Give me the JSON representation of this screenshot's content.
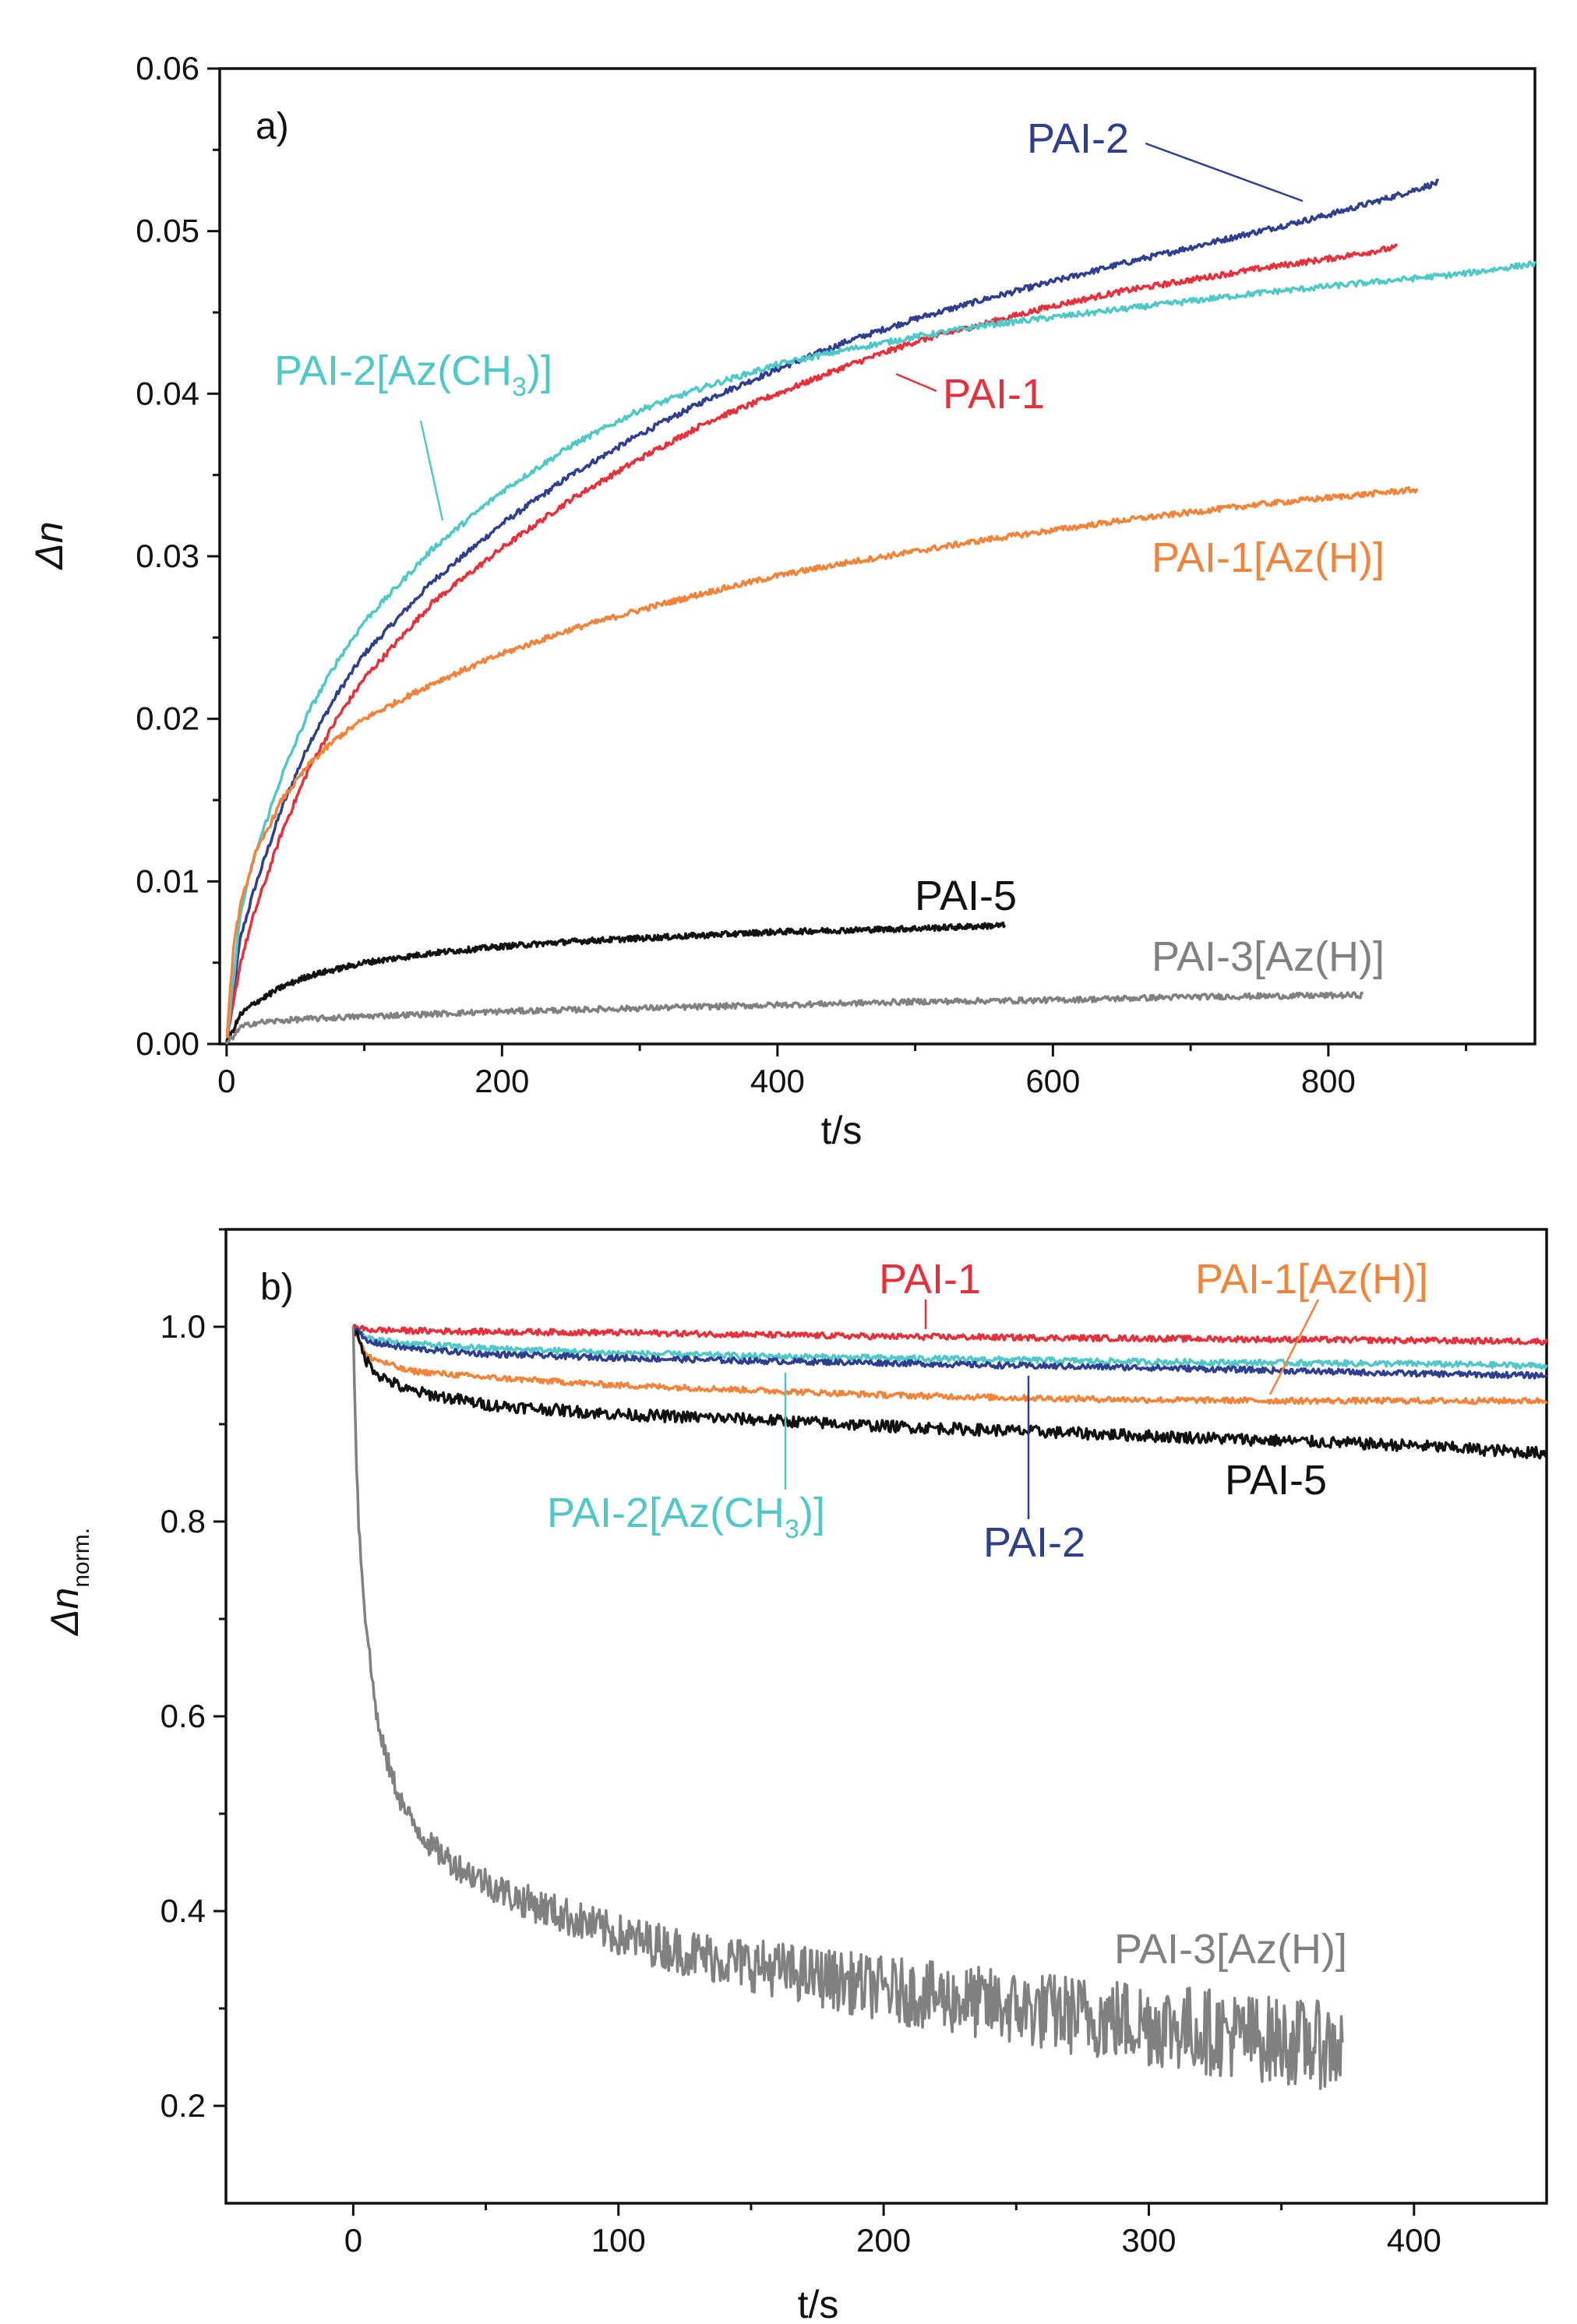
{
  "chart_data": [
    {
      "type": "line",
      "panel_label": "a)",
      "xlabel": "t/s",
      "ylabel": "Δn",
      "xlim": [
        -5,
        950
      ],
      "ylim": [
        0,
        0.06
      ],
      "x_ticks": [
        "0",
        "200",
        "400",
        "600",
        "800"
      ],
      "x_tick_values": [
        0,
        200,
        400,
        600,
        800
      ],
      "y_ticks": [
        "0.00",
        "0.01",
        "0.02",
        "0.03",
        "0.04",
        "0.05",
        "0.06"
      ],
      "y_tick_values": [
        0,
        0.01,
        0.02,
        0.03,
        0.04,
        0.05,
        0.06
      ],
      "series": [
        {
          "name": "PAI-2",
          "label": "PAI-2",
          "color": "#2e3f92",
          "x": [
            0,
            10,
            20,
            40,
            60,
            80,
            100,
            150,
            200,
            250,
            300,
            350,
            400,
            450,
            500,
            550,
            600,
            650,
            700,
            750,
            800,
            850,
            880
          ],
          "y": [
            0,
            0.0065,
            0.0095,
            0.0145,
            0.0185,
            0.0215,
            0.024,
            0.0285,
            0.032,
            0.035,
            0.0375,
            0.0397,
            0.0415,
            0.0432,
            0.0446,
            0.0458,
            0.0469,
            0.048,
            0.049,
            0.05,
            0.051,
            0.0522,
            0.053
          ]
        },
        {
          "name": "PAI-1",
          "label": "PAI-1",
          "color": "#e8303a",
          "x": [
            0,
            10,
            20,
            40,
            60,
            80,
            100,
            150,
            200,
            250,
            300,
            350,
            400,
            450,
            500,
            550,
            600,
            650,
            700,
            750,
            800,
            850
          ],
          "y": [
            0,
            0.005,
            0.008,
            0.013,
            0.017,
            0.02,
            0.0225,
            0.0272,
            0.0305,
            0.0335,
            0.036,
            0.0383,
            0.04,
            0.0417,
            0.0432,
            0.0443,
            0.0454,
            0.0463,
            0.047,
            0.0477,
            0.0483,
            0.049
          ]
        },
        {
          "name": "PAI-2[Az(CH3)]",
          "label": "PAI-2[Az(CH",
          "label_sub": "3",
          "label_end": ")]",
          "color": "#4ec8c8",
          "x": [
            0,
            10,
            20,
            40,
            60,
            80,
            100,
            150,
            200,
            250,
            300,
            350,
            400,
            450,
            500,
            550,
            600,
            650,
            700,
            750,
            800,
            850,
            900,
            950
          ],
          "y": [
            0,
            0.008,
            0.0115,
            0.0165,
            0.0205,
            0.0235,
            0.026,
            0.0305,
            0.034,
            0.0368,
            0.039,
            0.0405,
            0.0418,
            0.0427,
            0.0435,
            0.0442,
            0.0447,
            0.0452,
            0.0457,
            0.0462,
            0.0466,
            0.047,
            0.0474,
            0.048
          ]
        },
        {
          "name": "PAI-1[Az(H)]",
          "label": "PAI-1[Az(H)]",
          "color": "#f4833a",
          "x": [
            0,
            5,
            10,
            20,
            40,
            60,
            80,
            100,
            150,
            200,
            250,
            300,
            350,
            400,
            450,
            500,
            550,
            600,
            650,
            700,
            750,
            800,
            850,
            865
          ],
          "y": [
            0,
            0.006,
            0.0085,
            0.0115,
            0.015,
            0.0172,
            0.0188,
            0.02,
            0.0222,
            0.024,
            0.0255,
            0.0267,
            0.0278,
            0.0288,
            0.0296,
            0.0303,
            0.031,
            0.0316,
            0.0322,
            0.0327,
            0.0332,
            0.0336,
            0.034,
            0.0341
          ]
        },
        {
          "name": "PAI-5",
          "label": "PAI-5",
          "color": "#111111",
          "x": [
            0,
            10,
            20,
            40,
            60,
            80,
            100,
            150,
            200,
            250,
            300,
            350,
            400,
            450,
            500,
            565
          ],
          "y": [
            0,
            0.0018,
            0.0025,
            0.0035,
            0.0042,
            0.0046,
            0.005,
            0.0056,
            0.006,
            0.0063,
            0.0065,
            0.0067,
            0.0069,
            0.007,
            0.0071,
            0.0073
          ]
        },
        {
          "name": "PAI-3[Az(H)]",
          "label": "PAI-3[Az(H)]",
          "color": "#808080",
          "x": [
            0,
            10,
            20,
            50,
            100,
            200,
            300,
            400,
            500,
            600,
            700,
            825
          ],
          "y": [
            0,
            0.001,
            0.0013,
            0.0015,
            0.0017,
            0.002,
            0.0022,
            0.0024,
            0.0026,
            0.0027,
            0.0029,
            0.003
          ]
        }
      ]
    },
    {
      "type": "line",
      "panel_label": "b)",
      "xlabel": "t/s",
      "ylabel": "Δn",
      "ylabel_sub": "norm.",
      "xlim": [
        -48,
        450
      ],
      "ylim": [
        0.1,
        1.1
      ],
      "x_ticks": [
        "0",
        "100",
        "200",
        "300",
        "400"
      ],
      "x_tick_values": [
        0,
        100,
        200,
        300,
        400
      ],
      "y_ticks": [
        "0.2",
        "0.4",
        "0.6",
        "0.8",
        "1.0"
      ],
      "y_tick_values": [
        0.2,
        0.4,
        0.6,
        0.8,
        1.0
      ],
      "series": [
        {
          "name": "PAI-1",
          "label": "PAI-1",
          "color": "#e8303a",
          "x": [
            0,
            5,
            20,
            50,
            100,
            150,
            200,
            250,
            300,
            350,
            400,
            450
          ],
          "y": [
            1.0,
            0.997,
            0.996,
            0.995,
            0.994,
            0.992,
            0.99,
            0.989,
            0.988,
            0.987,
            0.986,
            0.985
          ]
        },
        {
          "name": "PAI-1[Az(H)]",
          "label": "PAI-1[Az(H)]",
          "color": "#f4833a",
          "x": [
            0,
            5,
            20,
            50,
            100,
            150,
            200,
            250,
            300,
            350,
            400,
            450
          ],
          "y": [
            1.0,
            0.97,
            0.955,
            0.948,
            0.94,
            0.935,
            0.93,
            0.927,
            0.925,
            0.924,
            0.924,
            0.924
          ]
        },
        {
          "name": "PAI-2[Az(CH3)]",
          "label": "PAI-2[Az(CH",
          "label_sub": "3",
          "label_end": ")]",
          "color": "#4ec8c8",
          "x": [
            0,
            5,
            20,
            50,
            100,
            150,
            200,
            250,
            300,
            350,
            400,
            450
          ],
          "y": [
            1.0,
            0.988,
            0.983,
            0.978,
            0.973,
            0.97,
            0.968,
            0.966,
            0.964,
            0.963,
            0.962,
            0.96
          ]
        },
        {
          "name": "PAI-2",
          "label": "PAI-2",
          "color": "#2e3f92",
          "x": [
            0,
            5,
            20,
            50,
            100,
            150,
            200,
            250,
            300,
            350,
            400,
            450
          ],
          "y": [
            1.0,
            0.985,
            0.978,
            0.972,
            0.968,
            0.965,
            0.963,
            0.96,
            0.958,
            0.955,
            0.952,
            0.95
          ]
        },
        {
          "name": "PAI-5",
          "label": "PAI-5",
          "color": "#111111",
          "x": [
            0,
            5,
            10,
            20,
            50,
            100,
            150,
            200,
            250,
            300,
            350,
            400,
            450
          ],
          "y": [
            1.0,
            0.965,
            0.95,
            0.935,
            0.92,
            0.91,
            0.905,
            0.898,
            0.893,
            0.888,
            0.883,
            0.878,
            0.87
          ]
        },
        {
          "name": "PAI-3[Az(H)]",
          "label": "PAI-3[Az(H)]",
          "color": "#808080",
          "x": [
            0,
            1,
            2,
            4,
            7,
            10,
            15,
            20,
            30,
            40,
            60,
            80,
            100,
            130,
            160,
            200,
            250,
            300,
            340,
            373
          ],
          "y": [
            1.0,
            0.88,
            0.8,
            0.72,
            0.64,
            0.58,
            0.535,
            0.5,
            0.465,
            0.445,
            0.415,
            0.395,
            0.375,
            0.355,
            0.34,
            0.32,
            0.3,
            0.285,
            0.27,
            0.26
          ]
        }
      ]
    }
  ]
}
